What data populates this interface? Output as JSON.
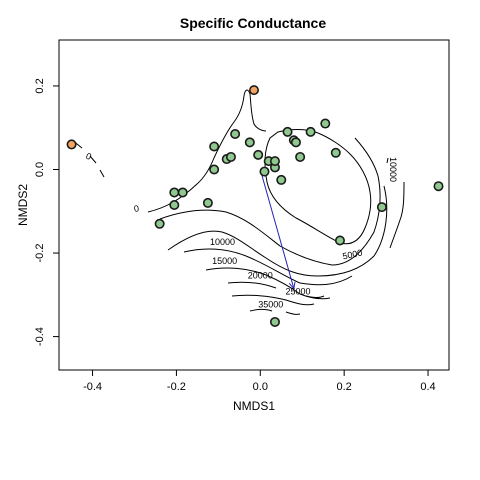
{
  "chart_data": {
    "type": "scatter",
    "title": "Specific Conductance",
    "xlabel": "NMDS1",
    "ylabel": "NMDS2",
    "xlim": [
      -0.48,
      0.45
    ],
    "ylim": [
      -0.48,
      0.31
    ],
    "xticks": [
      -0.4,
      -0.2,
      0.0,
      0.2,
      0.4
    ],
    "xtick_labels": [
      "-0.4",
      "-0.2",
      "0.0",
      "0.2",
      "0.4"
    ],
    "yticks": [
      -0.4,
      -0.2,
      0.0,
      0.2
    ],
    "ytick_labels": [
      "-0.4",
      "-0.2",
      "0.0",
      "0.2"
    ],
    "grid": false,
    "series": [
      {
        "color": "#8fc98f",
        "points": [
          [
            -0.24,
            -0.13
          ],
          [
            -0.205,
            -0.085
          ],
          [
            -0.205,
            -0.055
          ],
          [
            -0.185,
            -0.055
          ],
          [
            -0.125,
            -0.08
          ],
          [
            -0.11,
            0.055
          ],
          [
            -0.11,
            0.0
          ],
          [
            -0.08,
            0.025
          ],
          [
            -0.07,
            0.03
          ],
          [
            -0.06,
            0.085
          ],
          [
            -0.025,
            0.065
          ],
          [
            -0.005,
            0.035
          ],
          [
            0.01,
            -0.005
          ],
          [
            0.02,
            0.02
          ],
          [
            0.035,
            0.005
          ],
          [
            0.035,
            0.02
          ],
          [
            0.05,
            -0.025
          ],
          [
            0.065,
            0.09
          ],
          [
            0.08,
            0.07
          ],
          [
            0.085,
            0.065
          ],
          [
            0.095,
            0.03
          ],
          [
            0.12,
            0.09
          ],
          [
            0.155,
            0.11
          ],
          [
            0.18,
            0.04
          ],
          [
            0.19,
            -0.17
          ],
          [
            0.29,
            -0.09
          ],
          [
            0.425,
            -0.04
          ],
          [
            0.035,
            -0.365
          ]
        ]
      },
      {
        "color": "#f4a460",
        "points": [
          [
            -0.45,
            0.06
          ],
          [
            -0.015,
            0.19
          ]
        ]
      }
    ],
    "vector": {
      "from": [
        0.0,
        0.0
      ],
      "to": [
        0.08,
        -0.285
      ],
      "color": "#2323b4"
    },
    "contour_labels": [
      {
        "text": "0",
        "x": -0.41,
        "y": 0.03,
        "angle": 25
      },
      {
        "text": "0",
        "x": -0.295,
        "y": -0.095,
        "angle": -10
      },
      {
        "text": "5000",
        "x": 0.22,
        "y": -0.205,
        "angle": -12
      },
      {
        "text": "10000",
        "x": 0.315,
        "y": 0.0,
        "angle": 90
      },
      {
        "text": "10000",
        "x": -0.09,
        "y": -0.175,
        "angle": 0
      },
      {
        "text": "15000",
        "x": -0.085,
        "y": -0.22,
        "angle": 0
      },
      {
        "text": "20000",
        "x": 0.0,
        "y": -0.255,
        "angle": 0
      },
      {
        "text": "25000",
        "x": 0.09,
        "y": -0.293,
        "angle": 0
      },
      {
        "text": "35000",
        "x": 0.025,
        "y": -0.325,
        "angle": 0
      }
    ]
  }
}
